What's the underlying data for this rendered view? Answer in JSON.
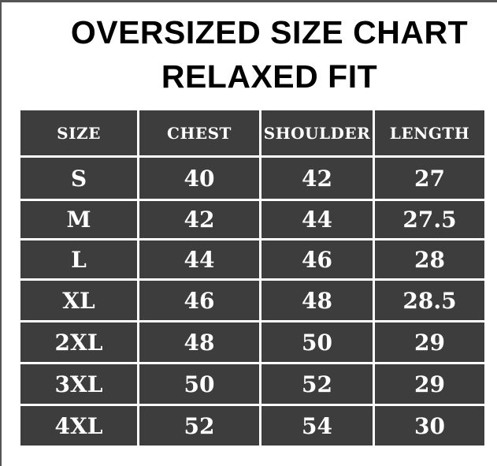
{
  "title": {
    "line1": "OVERSIZED SIZE CHART",
    "line2": "RELAXED FIT"
  },
  "colors": {
    "cell_bg": "#3d3d3d",
    "cell_text": "#ffffff",
    "title_text": "#000000"
  },
  "table": {
    "headers": [
      "SIZE",
      "CHEST",
      "SHOULDER",
      "LENGTH"
    ],
    "rows": [
      [
        "S",
        "40",
        "42",
        "27"
      ],
      [
        "M",
        "42",
        "44",
        "27.5"
      ],
      [
        "L",
        "44",
        "46",
        "28"
      ],
      [
        "XL",
        "46",
        "48",
        "28.5"
      ],
      [
        "2XL",
        "48",
        "50",
        "29"
      ],
      [
        "3XL",
        "50",
        "52",
        "29"
      ],
      [
        "4XL",
        "52",
        "54",
        "30"
      ]
    ]
  }
}
